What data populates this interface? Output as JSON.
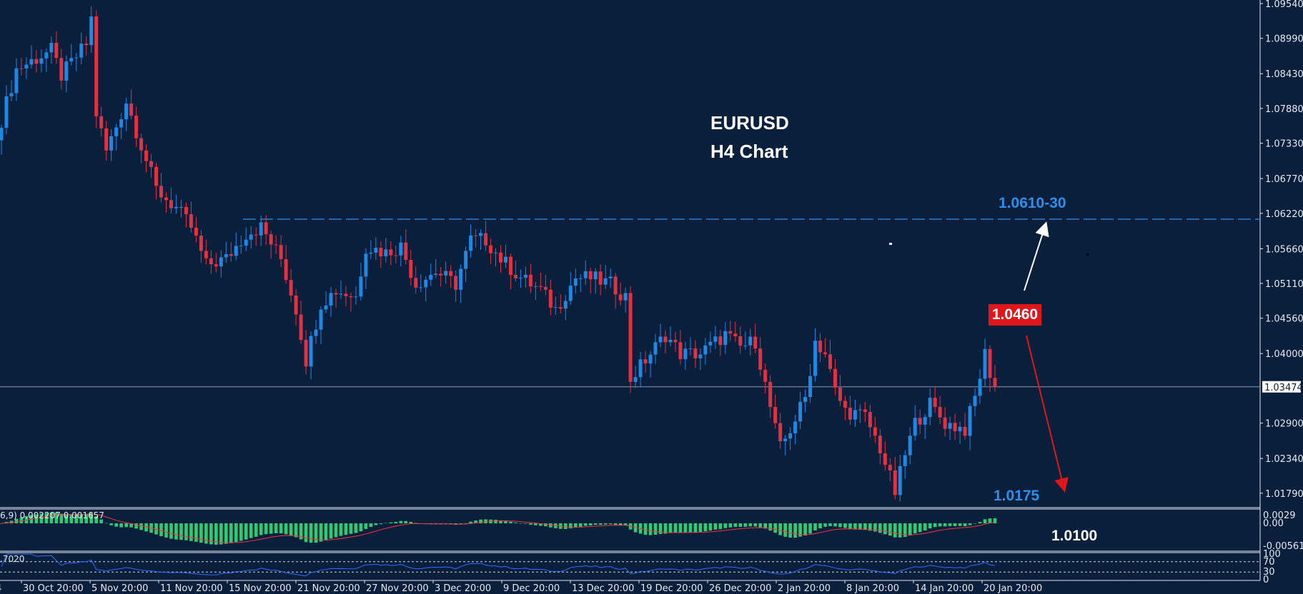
{
  "chart_data": {
    "type": "candlestick",
    "symbol": "EURUSD",
    "timeframe": "H4",
    "title_lines": [
      "EURUSD",
      "H4 Chart"
    ],
    "price_axis_ticks": [
      "1.09540",
      "1.08990",
      "1.08430",
      "1.07880",
      "1.07330",
      "1.06770",
      "1.06220",
      "1.05660",
      "1.05110",
      "1.04560",
      "1.04000",
      "1.02900",
      "1.02340",
      "1.01790"
    ],
    "ylim": [
      1.016,
      1.096
    ],
    "current_price": "1.03474",
    "time_axis_ticks": [
      "30 Oct 20:00",
      "5 Nov 20:00",
      "11 Nov 20:00",
      "15 Nov 20:00",
      "21 Nov 20:00",
      "27 Nov 20:00",
      "3 Dec 20:00",
      "9 Dec 20:00",
      "13 Dec 20:00",
      "19 Dec 20:00",
      "26 Dec 20:00",
      "2 Jan 20:00",
      "8 Jan 20:00",
      "14 Jan 20:00",
      "20 Jan 20:00"
    ],
    "time_axis_cut_label": "4",
    "close_path": [
      [
        0,
        1.077
      ],
      [
        3,
        1.085
      ],
      [
        10,
        1.088
      ],
      [
        12,
        1.084
      ],
      [
        17,
        1.089
      ],
      [
        18,
        1.093
      ],
      [
        19,
        1.078
      ],
      [
        21,
        1.072
      ],
      [
        25,
        1.08
      ],
      [
        28,
        1.073
      ],
      [
        31,
        1.066
      ],
      [
        35,
        1.063
      ],
      [
        38,
        1.06
      ],
      [
        41,
        1.054
      ],
      [
        45,
        1.055
      ],
      [
        49,
        1.059
      ],
      [
        52,
        1.06
      ],
      [
        56,
        1.055
      ],
      [
        59,
        1.047
      ],
      [
        61,
        1.039
      ],
      [
        64,
        1.048
      ],
      [
        67,
        1.05
      ],
      [
        71,
        1.049
      ],
      [
        73,
        1.057
      ],
      [
        77,
        1.056
      ],
      [
        80,
        1.057
      ],
      [
        83,
        1.051
      ],
      [
        87,
        1.053
      ],
      [
        91,
        1.051
      ],
      [
        94,
        1.058
      ],
      [
        97,
        1.058
      ],
      [
        100,
        1.055
      ],
      [
        104,
        1.052
      ],
      [
        108,
        1.05
      ],
      [
        111,
        1.047
      ],
      [
        115,
        1.052
      ],
      [
        118,
        1.052
      ],
      [
        122,
        1.051
      ],
      [
        125,
        1.049
      ],
      [
        126,
        1.036
      ],
      [
        128,
        1.038
      ],
      [
        133,
        1.043
      ],
      [
        136,
        1.04
      ],
      [
        140,
        1.04
      ],
      [
        145,
        1.043
      ],
      [
        148,
        1.041
      ],
      [
        151,
        1.042
      ],
      [
        153,
        1.035
      ],
      [
        155,
        1.028
      ],
      [
        156,
        1.025
      ],
      [
        158,
        1.028
      ],
      [
        161,
        1.033
      ],
      [
        163,
        1.042
      ],
      [
        165,
        1.04
      ],
      [
        167,
        1.034
      ],
      [
        169,
        1.031
      ],
      [
        173,
        1.03
      ],
      [
        176,
        1.025
      ],
      [
        179,
        1.018
      ],
      [
        181,
        1.024
      ],
      [
        183,
        1.029
      ],
      [
        186,
        1.032
      ],
      [
        189,
        1.029
      ],
      [
        193,
        1.028
      ],
      [
        195,
        1.033
      ],
      [
        197,
        1.04
      ],
      [
        198,
        1.037
      ],
      [
        199,
        1.03474
      ]
    ],
    "resistance_level": 1.0615,
    "annotations": {
      "resistance_label": "1.0610-30",
      "pivot_label": "1.0460",
      "support_label": "1.0175",
      "target_label": "1.0100"
    },
    "colors": {
      "background": "#0a1f3c",
      "bull": "#1e88e5",
      "bear": "#e53040",
      "resistance": "#2f8fe8",
      "pivot_box": "#e0161b",
      "macd_hist": "#2ecc71",
      "macd_signal": "#ff3040",
      "rsi": "#2f6bff"
    },
    "macd": {
      "label": "6,9) 0.002207 0.001657",
      "ticks": [
        "0.0029",
        "0.00",
        "-0.005612"
      ]
    },
    "rsi": {
      "label": ".7020",
      "levels": [
        70,
        30
      ],
      "ticks": [
        "100",
        "70",
        "30",
        "0"
      ]
    }
  }
}
